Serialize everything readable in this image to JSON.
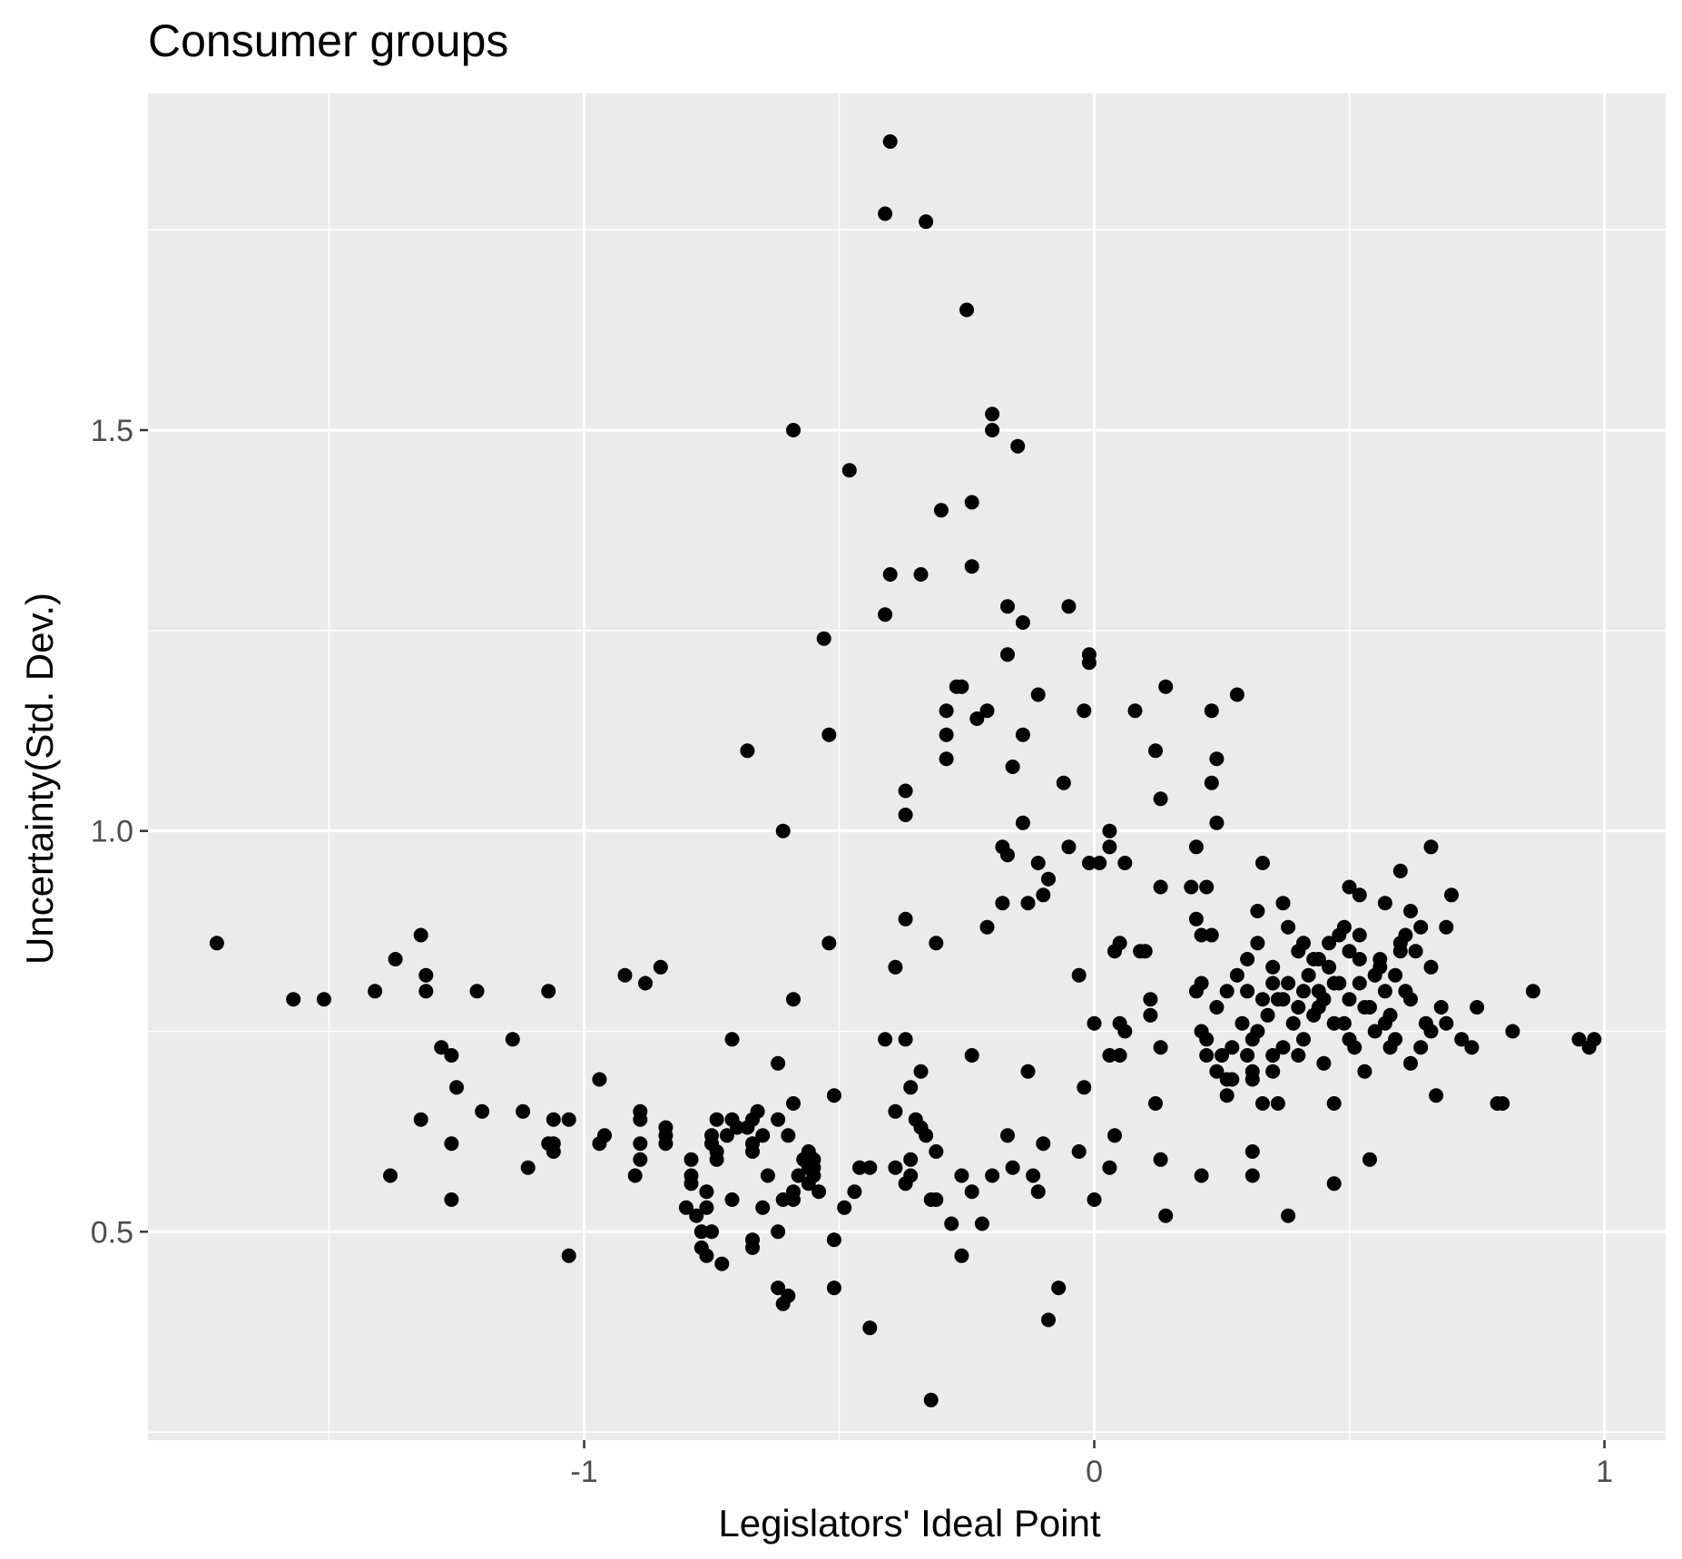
{
  "chart_data": {
    "type": "scatter",
    "title": "Consumer groups",
    "xlabel": "Legislators' Ideal Point",
    "ylabel": "Uncertainty(Std. Dev.)",
    "x_ticks": [
      -1,
      0,
      1
    ],
    "x_tick_labels": [
      "-1",
      "0",
      "1"
    ],
    "y_ticks": [
      0.5,
      1.0,
      1.5
    ],
    "y_tick_labels": [
      "0.5",
      "1.0",
      "1.5"
    ],
    "xlim": [
      -1.855,
      1.12
    ],
    "ylim": [
      0.24,
      1.92
    ],
    "grid": true,
    "legend": "none",
    "colors": {
      "panel": "#ebebeb",
      "grid": "#ffffff",
      "point": "#000000",
      "tick_label": "#4d4d4d"
    },
    "points": [
      [
        -0.4,
        1.86
      ],
      [
        -0.41,
        1.77
      ],
      [
        -0.33,
        1.76
      ],
      [
        -0.25,
        1.65
      ],
      [
        -0.2,
        1.52
      ],
      [
        -0.2,
        1.5
      ],
      [
        -0.15,
        1.48
      ],
      [
        -0.59,
        1.5
      ],
      [
        -0.48,
        1.45
      ],
      [
        -0.24,
        1.41
      ],
      [
        -0.3,
        1.4
      ],
      [
        -0.24,
        1.33
      ],
      [
        -0.34,
        1.32
      ],
      [
        -0.4,
        1.32
      ],
      [
        -0.05,
        1.28
      ],
      [
        -0.17,
        1.28
      ],
      [
        -0.14,
        1.26
      ],
      [
        -0.41,
        1.27
      ],
      [
        -0.53,
        1.24
      ],
      [
        -0.17,
        1.22
      ],
      [
        -0.01,
        1.22
      ],
      [
        -0.01,
        1.21
      ],
      [
        -0.27,
        1.18
      ],
      [
        -0.26,
        1.18
      ],
      [
        -0.11,
        1.17
      ],
      [
        0.14,
        1.18
      ],
      [
        0.28,
        1.17
      ],
      [
        -0.29,
        1.15
      ],
      [
        -0.21,
        1.15
      ],
      [
        -0.02,
        1.15
      ],
      [
        0.08,
        1.15
      ],
      [
        0.23,
        1.15
      ],
      [
        -0.23,
        1.14
      ],
      [
        -0.14,
        1.12
      ],
      [
        -0.52,
        1.12
      ],
      [
        -0.29,
        1.12
      ],
      [
        -0.68,
        1.1
      ],
      [
        0.12,
        1.1
      ],
      [
        -0.29,
        1.09
      ],
      [
        -0.16,
        1.08
      ],
      [
        0.24,
        1.09
      ],
      [
        -0.06,
        1.06
      ],
      [
        0.23,
        1.06
      ],
      [
        -0.37,
        1.05
      ],
      [
        0.13,
        1.04
      ],
      [
        -0.37,
        1.02
      ],
      [
        -0.14,
        1.01
      ],
      [
        0.24,
        1.01
      ],
      [
        -0.61,
        1.0
      ],
      [
        0.03,
        1.0
      ],
      [
        -0.18,
        0.98
      ],
      [
        -0.17,
        0.97
      ],
      [
        -0.05,
        0.98
      ],
      [
        0.03,
        0.98
      ],
      [
        0.2,
        0.98
      ],
      [
        0.66,
        0.98
      ],
      [
        -0.01,
        0.96
      ],
      [
        0.01,
        0.96
      ],
      [
        0.06,
        0.96
      ],
      [
        -0.11,
        0.96
      ],
      [
        -0.09,
        0.94
      ],
      [
        0.33,
        0.96
      ],
      [
        0.6,
        0.95
      ],
      [
        -0.18,
        0.91
      ],
      [
        -0.13,
        0.91
      ],
      [
        -0.1,
        0.92
      ],
      [
        0.13,
        0.93
      ],
      [
        0.19,
        0.93
      ],
      [
        0.22,
        0.93
      ],
      [
        0.5,
        0.93
      ],
      [
        0.52,
        0.92
      ],
      [
        0.7,
        0.92
      ],
      [
        -0.37,
        0.89
      ],
      [
        -0.21,
        0.88
      ],
      [
        0.2,
        0.89
      ],
      [
        0.21,
        0.87
      ],
      [
        0.23,
        0.87
      ],
      [
        0.37,
        0.91
      ],
      [
        0.32,
        0.9
      ],
      [
        0.62,
        0.9
      ],
      [
        0.57,
        0.91
      ],
      [
        -0.52,
        0.86
      ],
      [
        -0.31,
        0.86
      ],
      [
        -1.72,
        0.86
      ],
      [
        -1.32,
        0.87
      ],
      [
        -0.85,
        0.83
      ],
      [
        -1.37,
        0.84
      ],
      [
        -1.31,
        0.82
      ],
      [
        -0.92,
        0.82
      ],
      [
        -0.88,
        0.81
      ],
      [
        -1.31,
        0.8
      ],
      [
        -1.41,
        0.8
      ],
      [
        -1.21,
        0.8
      ],
      [
        -1.07,
        0.8
      ],
      [
        -1.57,
        0.79
      ],
      [
        -1.51,
        0.79
      ],
      [
        -0.39,
        0.83
      ],
      [
        -0.59,
        0.79
      ],
      [
        -0.03,
        0.82
      ],
      [
        0.04,
        0.85
      ],
      [
        0.05,
        0.86
      ],
      [
        0.09,
        0.85
      ],
      [
        0.1,
        0.85
      ],
      [
        0.21,
        0.81
      ],
      [
        0.2,
        0.8
      ],
      [
        0.11,
        0.79
      ],
      [
        0.11,
        0.77
      ],
      [
        0.0,
        0.76
      ],
      [
        0.06,
        0.75
      ],
      [
        0.05,
        0.76
      ],
      [
        0.13,
        0.73
      ],
      [
        0.03,
        0.72
      ],
      [
        0.05,
        0.72
      ],
      [
        0.21,
        0.75
      ],
      [
        0.22,
        0.72
      ],
      [
        0.24,
        0.7
      ],
      [
        0.26,
        0.69
      ],
      [
        0.26,
        0.67
      ],
      [
        0.27,
        0.69
      ],
      [
        0.31,
        0.69
      ],
      [
        0.33,
        0.66
      ],
      [
        0.36,
        0.66
      ],
      [
        0.35,
        0.72
      ],
      [
        0.37,
        0.73
      ],
      [
        0.45,
        0.71
      ],
      [
        0.47,
        0.66
      ],
      [
        0.54,
        0.59
      ],
      [
        0.59,
        0.74
      ],
      [
        0.62,
        0.71
      ],
      [
        0.64,
        0.73
      ],
      [
        0.67,
        0.67
      ],
      [
        0.75,
        0.78
      ],
      [
        0.72,
        0.74
      ],
      [
        0.74,
        0.73
      ],
      [
        0.79,
        0.66
      ],
      [
        0.8,
        0.66
      ],
      [
        0.82,
        0.75
      ],
      [
        0.86,
        0.8
      ],
      [
        0.95,
        0.74
      ],
      [
        0.97,
        0.73
      ],
      [
        0.98,
        0.74
      ],
      [
        0.3,
        0.84
      ],
      [
        0.35,
        0.83
      ],
      [
        0.4,
        0.85
      ],
      [
        0.43,
        0.84
      ],
      [
        0.46,
        0.86
      ],
      [
        0.48,
        0.87
      ],
      [
        0.5,
        0.85
      ],
      [
        0.52,
        0.84
      ],
      [
        0.56,
        0.83
      ],
      [
        0.6,
        0.85
      ],
      [
        0.63,
        0.85
      ],
      [
        0.66,
        0.83
      ],
      [
        0.68,
        0.78
      ],
      [
        0.65,
        0.76
      ],
      [
        0.62,
        0.79
      ],
      [
        0.58,
        0.77
      ],
      [
        0.55,
        0.75
      ],
      [
        0.5,
        0.74
      ],
      [
        0.47,
        0.76
      ],
      [
        0.44,
        0.78
      ],
      [
        0.41,
        0.8
      ],
      [
        0.38,
        0.81
      ],
      [
        0.36,
        0.79
      ],
      [
        0.34,
        0.77
      ],
      [
        0.32,
        0.75
      ],
      [
        0.3,
        0.8
      ],
      [
        0.28,
        0.82
      ],
      [
        0.4,
        0.78
      ],
      [
        0.42,
        0.82
      ],
      [
        0.44,
        0.8
      ],
      [
        0.46,
        0.83
      ],
      [
        0.48,
        0.81
      ],
      [
        0.5,
        0.79
      ],
      [
        0.52,
        0.81
      ],
      [
        0.54,
        0.78
      ],
      [
        0.57,
        0.8
      ],
      [
        0.59,
        0.82
      ],
      [
        0.61,
        0.8
      ],
      [
        0.39,
        0.76
      ],
      [
        0.41,
        0.74
      ],
      [
        0.43,
        0.77
      ],
      [
        0.45,
        0.79
      ],
      [
        0.37,
        0.79
      ],
      [
        0.35,
        0.81
      ],
      [
        0.33,
        0.79
      ],
      [
        0.31,
        0.74
      ],
      [
        0.29,
        0.76
      ],
      [
        0.27,
        0.73
      ],
      [
        0.25,
        0.72
      ],
      [
        0.31,
        0.7
      ],
      [
        0.35,
        0.7
      ],
      [
        0.4,
        0.72
      ],
      [
        0.44,
        0.84
      ],
      [
        0.47,
        0.81
      ],
      [
        0.49,
        0.76
      ],
      [
        0.51,
        0.73
      ],
      [
        0.53,
        0.78
      ],
      [
        0.55,
        0.82
      ],
      [
        0.57,
        0.76
      ],
      [
        0.66,
        0.75
      ],
      [
        0.69,
        0.76
      ],
      [
        0.49,
        0.88
      ],
      [
        0.52,
        0.87
      ],
      [
        0.56,
        0.84
      ],
      [
        0.6,
        0.86
      ],
      [
        0.64,
        0.88
      ],
      [
        0.69,
        0.88
      ],
      [
        0.61,
        0.87
      ],
      [
        0.58,
        0.73
      ],
      [
        0.53,
        0.7
      ],
      [
        0.38,
        0.88
      ],
      [
        0.41,
        0.86
      ],
      [
        0.32,
        0.86
      ],
      [
        0.26,
        0.8
      ],
      [
        0.24,
        0.78
      ],
      [
        0.22,
        0.74
      ],
      [
        0.3,
        0.72
      ],
      [
        0.31,
        0.6
      ],
      [
        0.31,
        0.57
      ],
      [
        0.38,
        0.52
      ],
      [
        0.47,
        0.56
      ],
      [
        0.21,
        0.57
      ],
      [
        0.13,
        0.59
      ],
      [
        0.14,
        0.52
      ],
      [
        0.12,
        0.66
      ],
      [
        0.04,
        0.62
      ],
      [
        0.03,
        0.58
      ],
      [
        0.0,
        0.54
      ],
      [
        -0.03,
        0.6
      ],
      [
        -0.02,
        0.68
      ],
      [
        -0.1,
        0.61
      ],
      [
        -0.13,
        0.7
      ],
      [
        -0.12,
        0.57
      ],
      [
        -0.11,
        0.55
      ],
      [
        -0.07,
        0.43
      ],
      [
        -0.09,
        0.39
      ],
      [
        -0.17,
        0.62
      ],
      [
        -0.16,
        0.58
      ],
      [
        -0.2,
        0.57
      ],
      [
        -0.22,
        0.51
      ],
      [
        -0.24,
        0.55
      ],
      [
        -0.24,
        0.72
      ],
      [
        -0.26,
        0.57
      ],
      [
        -0.26,
        0.47
      ],
      [
        -0.28,
        0.51
      ],
      [
        -0.31,
        0.54
      ],
      [
        -0.31,
        0.6
      ],
      [
        -0.32,
        0.54
      ],
      [
        -0.32,
        0.29
      ],
      [
        -0.33,
        0.62
      ],
      [
        -0.34,
        0.63
      ],
      [
        -0.35,
        0.64
      ],
      [
        -0.36,
        0.57
      ],
      [
        -0.37,
        0.56
      ],
      [
        -0.36,
        0.59
      ],
      [
        -0.36,
        0.68
      ],
      [
        -0.34,
        0.7
      ],
      [
        -0.39,
        0.65
      ],
      [
        -0.39,
        0.58
      ],
      [
        -0.37,
        0.74
      ],
      [
        -0.41,
        0.74
      ],
      [
        -0.44,
        0.58
      ],
      [
        -0.44,
        0.38
      ],
      [
        -0.46,
        0.58
      ],
      [
        -0.47,
        0.55
      ],
      [
        -0.49,
        0.53
      ],
      [
        -0.51,
        0.49
      ],
      [
        -0.51,
        0.43
      ],
      [
        -0.51,
        0.67
      ],
      [
        -0.54,
        0.55
      ],
      [
        -0.55,
        0.59
      ],
      [
        -0.55,
        0.58
      ],
      [
        -0.55,
        0.57
      ],
      [
        -0.56,
        0.58
      ],
      [
        -0.56,
        0.6
      ],
      [
        -0.57,
        0.59
      ],
      [
        -0.56,
        0.56
      ],
      [
        -0.58,
        0.57
      ],
      [
        -0.59,
        0.55
      ],
      [
        -0.6,
        0.62
      ],
      [
        -0.59,
        0.66
      ],
      [
        -0.59,
        0.54
      ],
      [
        -0.6,
        0.42
      ],
      [
        -0.62,
        0.43
      ],
      [
        -0.61,
        0.54
      ],
      [
        -0.62,
        0.64
      ],
      [
        -0.61,
        0.41
      ],
      [
        -0.62,
        0.5
      ],
      [
        -0.62,
        0.71
      ],
      [
        -0.65,
        0.62
      ],
      [
        -0.64,
        0.57
      ],
      [
        -0.65,
        0.53
      ],
      [
        -0.66,
        0.65
      ],
      [
        -0.67,
        0.64
      ],
      [
        -0.67,
        0.61
      ],
      [
        -0.67,
        0.6
      ],
      [
        -0.67,
        0.49
      ],
      [
        -0.67,
        0.48
      ],
      [
        -0.68,
        0.63
      ],
      [
        -0.7,
        0.63
      ],
      [
        -0.71,
        0.64
      ],
      [
        -0.71,
        0.74
      ],
      [
        -0.71,
        0.54
      ],
      [
        -0.72,
        0.62
      ],
      [
        -0.74,
        0.6
      ],
      [
        -0.74,
        0.59
      ],
      [
        -0.73,
        0.46
      ],
      [
        -0.75,
        0.5
      ],
      [
        -0.76,
        0.47
      ],
      [
        -0.76,
        0.53
      ],
      [
        -0.76,
        0.55
      ],
      [
        -0.77,
        0.48
      ],
      [
        -0.77,
        0.5
      ],
      [
        -0.78,
        0.52
      ],
      [
        -0.79,
        0.56
      ],
      [
        -0.79,
        0.59
      ],
      [
        -0.79,
        0.57
      ],
      [
        -0.8,
        0.53
      ],
      [
        -0.74,
        0.64
      ],
      [
        -0.75,
        0.62
      ],
      [
        -0.75,
        0.61
      ],
      [
        -0.84,
        0.62
      ],
      [
        -0.84,
        0.61
      ],
      [
        -0.84,
        0.63
      ],
      [
        -0.89,
        0.59
      ],
      [
        -0.9,
        0.57
      ],
      [
        -0.89,
        0.61
      ],
      [
        -0.89,
        0.64
      ],
      [
        -0.89,
        0.65
      ],
      [
        -0.96,
        0.62
      ],
      [
        -0.97,
        0.61
      ],
      [
        -0.97,
        0.69
      ],
      [
        -1.03,
        0.64
      ],
      [
        -1.03,
        0.47
      ],
      [
        -1.06,
        0.6
      ],
      [
        -1.06,
        0.61
      ],
      [
        -1.07,
        0.61
      ],
      [
        -1.06,
        0.64
      ],
      [
        -1.12,
        0.65
      ],
      [
        -1.11,
        0.58
      ],
      [
        -1.14,
        0.74
      ],
      [
        -1.2,
        0.65
      ],
      [
        -1.25,
        0.68
      ],
      [
        -1.26,
        0.54
      ],
      [
        -1.26,
        0.61
      ],
      [
        -1.26,
        0.72
      ],
      [
        -1.28,
        0.73
      ],
      [
        -1.32,
        0.64
      ],
      [
        -1.38,
        0.57
      ]
    ]
  }
}
